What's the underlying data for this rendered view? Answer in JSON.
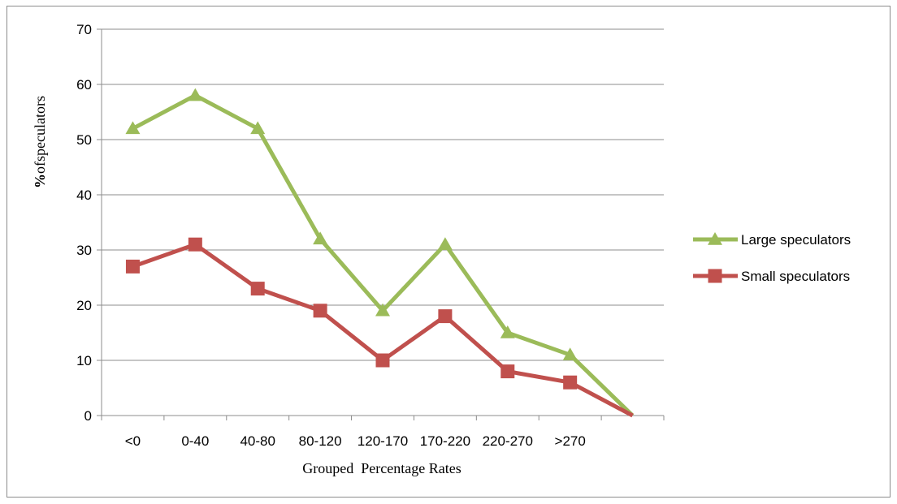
{
  "chart_data": {
    "type": "line",
    "title": "",
    "xlabel": "Grouped  Percentage Rates",
    "ylabel": "%ofspeculators",
    "ylabel_prefix": "%",
    "ylabel_rest": "ofspeculators",
    "categories": [
      "<0",
      "0-40",
      "40-80",
      "80-120",
      "120-170",
      "170-220",
      "220-270",
      ">270",
      ""
    ],
    "ylim": [
      0,
      70
    ],
    "yticks": [
      0,
      10,
      20,
      30,
      40,
      50,
      60,
      70
    ],
    "grid": true,
    "legend_position": "right",
    "series": [
      {
        "name": "Large speculators",
        "color": "#9bbb59",
        "marker": "triangle",
        "values": [
          52,
          58,
          52,
          32,
          19,
          31,
          15,
          11,
          0
        ]
      },
      {
        "name": "Small speculators",
        "color": "#c0504d",
        "marker": "square",
        "values": [
          27,
          31,
          23,
          19,
          10,
          18,
          8,
          6,
          0
        ]
      }
    ]
  }
}
